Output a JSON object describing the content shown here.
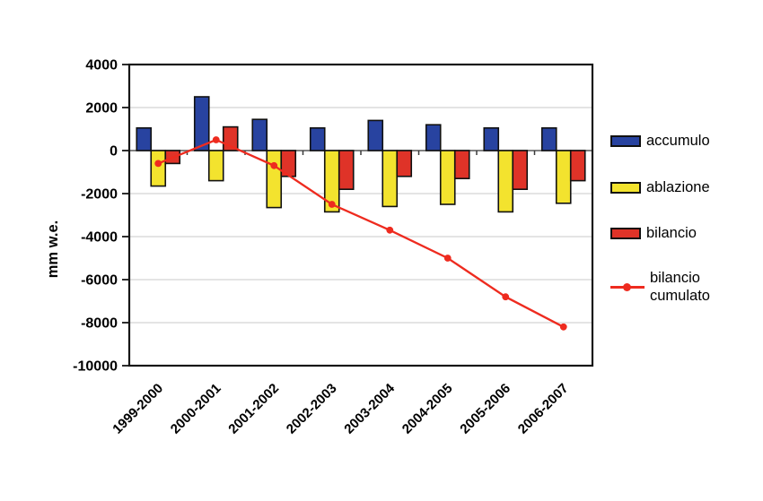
{
  "page": {
    "background": "#ffffff"
  },
  "chart_data": {
    "type": "bar",
    "subtype": "grouped bars with overlaid line series",
    "title": "",
    "xlabel": "",
    "ylabel": "mm w.e.",
    "ylim": [
      -10000,
      4000
    ],
    "yticks": [
      4000,
      2000,
      0,
      -2000,
      -4000,
      -6000,
      -8000,
      -10000
    ],
    "grid": "horizontal light-gray",
    "legend_position": "right",
    "categories": [
      "1999-2000",
      "2000-2001",
      "2001-2002",
      "2002-2003",
      "2003-2004",
      "2004-2005",
      "2005-2006",
      "2006-2007"
    ],
    "series": [
      {
        "name": "accumulo",
        "type": "bar",
        "color": "#2843A0",
        "values": [
          1050,
          2500,
          1450,
          1050,
          1400,
          1200,
          1050,
          1050
        ]
      },
      {
        "name": "ablazione",
        "type": "bar",
        "color": "#F3E32E",
        "values": [
          -1650,
          -1400,
          -2650,
          -2850,
          -2600,
          -2500,
          -2850,
          -2450
        ]
      },
      {
        "name": "bilancio",
        "type": "bar",
        "color": "#DF3328",
        "values": [
          -600,
          1100,
          -1200,
          -1800,
          -1200,
          -1300,
          -1800,
          -1400
        ]
      },
      {
        "name": "bilancio cumulato",
        "type": "line",
        "color": "#EE2B1F",
        "marker": "circle",
        "values": [
          -600,
          500,
          -700,
          -2500,
          -3700,
          -5000,
          -6800,
          -8200
        ]
      }
    ]
  },
  "legend": {
    "items": [
      {
        "label": "accumulo"
      },
      {
        "label": "ablazione"
      },
      {
        "label": "bilancio"
      },
      {
        "label": "bilancio cumulato"
      }
    ]
  },
  "colors": {
    "accumulo": "#2843A0",
    "ablazione": "#F3E32E",
    "bilancio": "#DF3328",
    "line": "#EE2B1F",
    "grid": "#DCDCDC",
    "zero_axis": "#6F6F6F",
    "frame": "#161616",
    "text": "#000000"
  }
}
